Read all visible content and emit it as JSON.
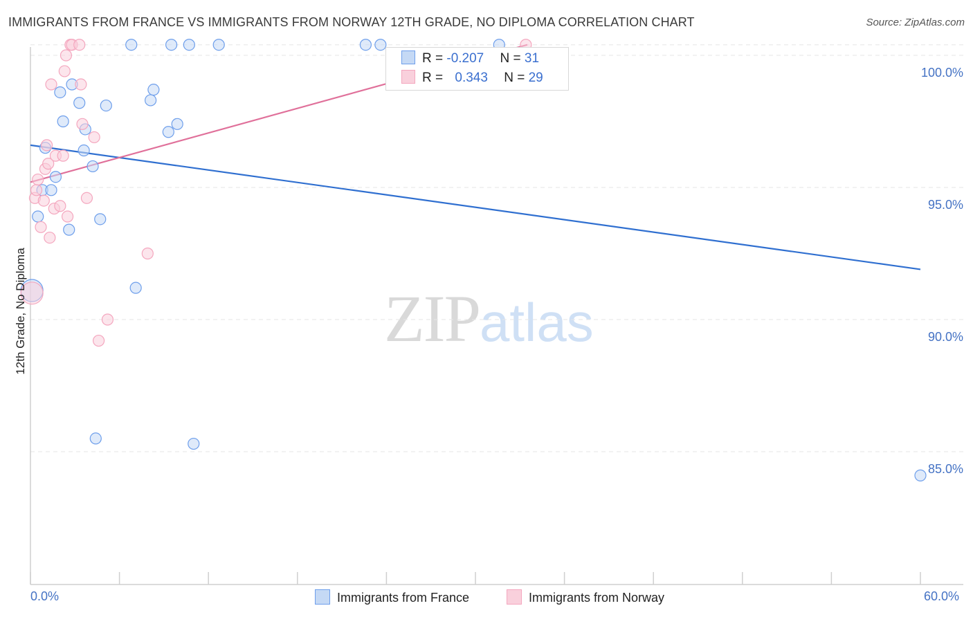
{
  "title": "IMMIGRANTS FROM FRANCE VS IMMIGRANTS FROM NORWAY 12TH GRADE, NO DIPLOMA CORRELATION CHART",
  "source": "Source: ZipAtlas.com",
  "watermark": {
    "zip": "ZIP",
    "atlas": "atlas"
  },
  "legend": {
    "rows": [
      {
        "r_label": "R = ",
        "r_value": "-0.207",
        "n_label": "N = ",
        "n_value": "31",
        "color": "#6d9eeb"
      },
      {
        "r_label": "R = ",
        "r_value": "0.343",
        "n_label": "N = ",
        "n_value": "29",
        "color": "#f4a6be"
      }
    ]
  },
  "chart_data": {
    "type": "scatter",
    "title": "IMMIGRANTS FROM FRANCE VS IMMIGRANTS FROM NORWAY 12TH GRADE, NO DIPLOMA CORRELATION CHART",
    "xlabel": "",
    "ylabel": "12th Grade, No Diploma",
    "xlim": [
      0,
      60
    ],
    "ylim": [
      80,
      101
    ],
    "x_tick_labels": [
      "0.0%",
      "60.0%"
    ],
    "y_ticks": [
      85,
      90,
      95,
      100
    ],
    "y_tick_labels": [
      "85.0%",
      "90.0%",
      "95.0%",
      "100.0%"
    ],
    "grid": true,
    "legend_position": "bottom",
    "series": [
      {
        "name": "Immigrants from France",
        "color": "#6d9eeb",
        "fill": "#c5d9f5",
        "points": [
          [
            0.1,
            91.1
          ],
          [
            0.5,
            93.9
          ],
          [
            0.8,
            94.9
          ],
          [
            1.0,
            96.5
          ],
          [
            1.4,
            94.9
          ],
          [
            1.7,
            95.4
          ],
          [
            2.0,
            98.6
          ],
          [
            2.2,
            97.5
          ],
          [
            2.6,
            93.4
          ],
          [
            2.8,
            98.9
          ],
          [
            3.3,
            98.2
          ],
          [
            3.6,
            96.4
          ],
          [
            3.7,
            97.2
          ],
          [
            4.2,
            95.8
          ],
          [
            4.4,
            85.5
          ],
          [
            4.7,
            93.8
          ],
          [
            5.1,
            98.1
          ],
          [
            6.8,
            100.4
          ],
          [
            7.1,
            91.2
          ],
          [
            8.1,
            98.3
          ],
          [
            8.3,
            98.7
          ],
          [
            9.3,
            97.1
          ],
          [
            9.5,
            100.4
          ],
          [
            9.9,
            97.4
          ],
          [
            10.7,
            100.4
          ],
          [
            11.0,
            85.3
          ],
          [
            12.7,
            100.4
          ],
          [
            22.6,
            100.4
          ],
          [
            23.6,
            100.4
          ],
          [
            31.6,
            100.4
          ],
          [
            60.0,
            84.1
          ]
        ],
        "trend": {
          "x": [
            0,
            60
          ],
          "y": [
            96.6,
            91.9
          ]
        }
      },
      {
        "name": "Immigrants from Norway",
        "color": "#f4a6be",
        "fill": "#f9d0dc",
        "points": [
          [
            0.1,
            91.0
          ],
          [
            0.3,
            94.6
          ],
          [
            0.4,
            94.9
          ],
          [
            0.5,
            95.3
          ],
          [
            0.7,
            93.5
          ],
          [
            0.9,
            94.5
          ],
          [
            1.0,
            95.7
          ],
          [
            1.1,
            96.6
          ],
          [
            1.2,
            95.9
          ],
          [
            1.3,
            93.1
          ],
          [
            1.4,
            98.9
          ],
          [
            1.6,
            94.2
          ],
          [
            1.7,
            96.2
          ],
          [
            2.0,
            94.3
          ],
          [
            2.2,
            96.2
          ],
          [
            2.3,
            99.4
          ],
          [
            2.4,
            100.0
          ],
          [
            2.5,
            93.9
          ],
          [
            2.7,
            100.4
          ],
          [
            2.8,
            100.4
          ],
          [
            3.3,
            100.4
          ],
          [
            3.4,
            98.9
          ],
          [
            3.5,
            97.4
          ],
          [
            3.8,
            94.6
          ],
          [
            4.3,
            96.9
          ],
          [
            4.6,
            89.2
          ],
          [
            5.2,
            90.0
          ],
          [
            7.9,
            92.5
          ],
          [
            33.4,
            100.4
          ]
        ],
        "trend": {
          "x": [
            0,
            33.5
          ],
          "y": [
            95.2,
            100.4
          ]
        }
      }
    ]
  }
}
